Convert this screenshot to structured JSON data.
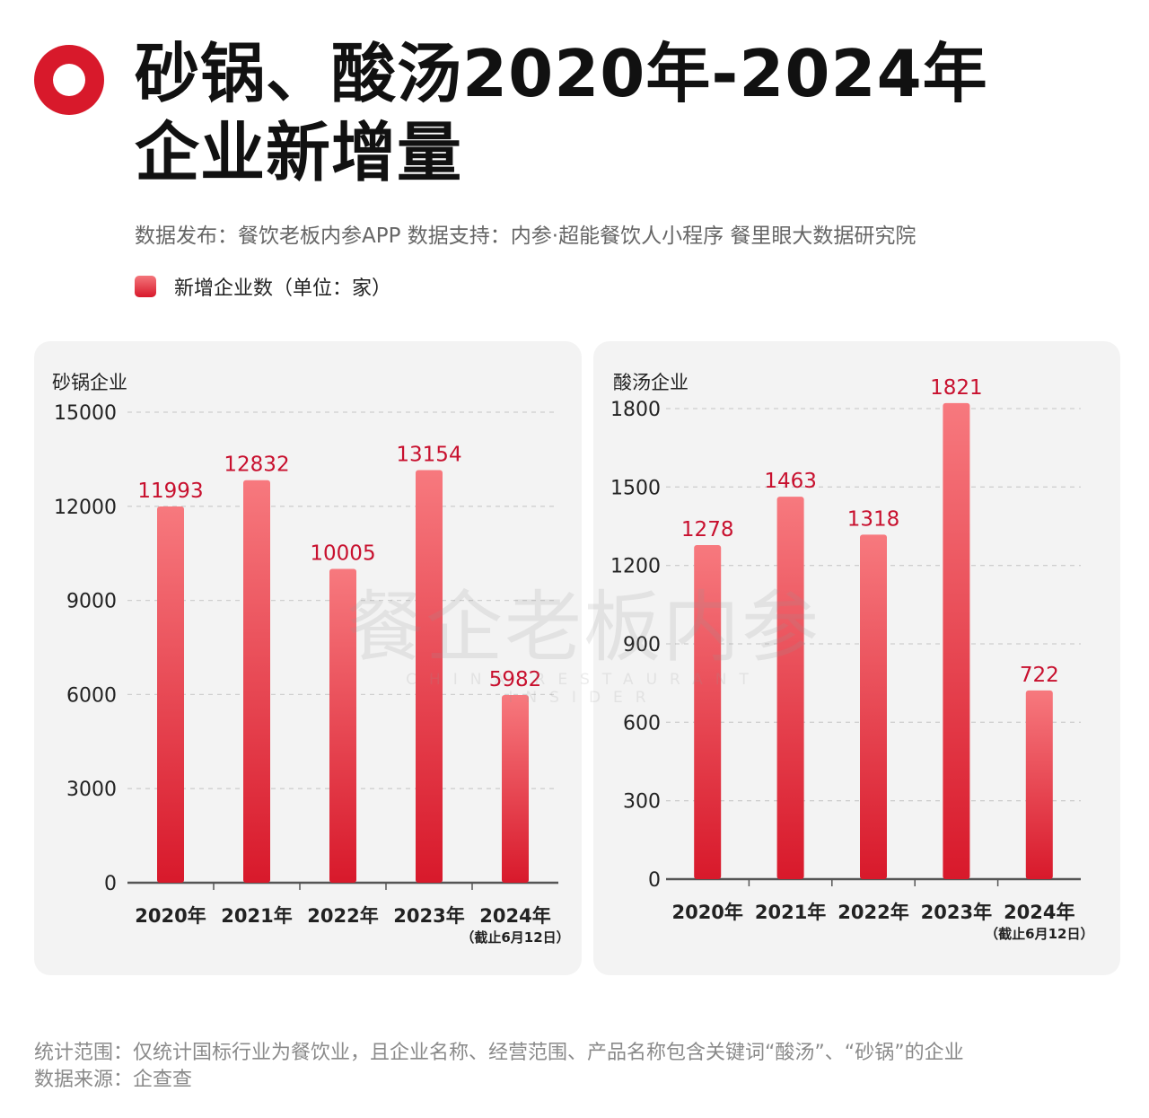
{
  "header": {
    "title_line1": "砂锅、酸汤2020年-2024年",
    "title_line2": "企业新增量",
    "source": "数据发布：餐饮老板内参APP 数据支持：内参·超能餐饮人小程序 餐里眼大数据研究院",
    "legend_label": "新增企业数（单位：家）",
    "accent_color": "#d8192b"
  },
  "watermark": {
    "cn": "餐企老板内参",
    "en": "CHINA RESTAURANT INSIDER"
  },
  "chart_data": [
    {
      "type": "bar",
      "title": "砂锅企业",
      "categories": [
        "2020年",
        "2021年",
        "2022年",
        "2023年",
        "2024年"
      ],
      "category_notes": [
        "",
        "",
        "",
        "",
        "（截止6月12日）"
      ],
      "values": [
        11993,
        12832,
        10005,
        13154,
        5982
      ],
      "yticks": [
        0,
        3000,
        6000,
        9000,
        12000,
        15000
      ],
      "ylim": [
        0,
        15000
      ],
      "grid": true,
      "bar_color": "#d8192b",
      "label_color": "#c8102e"
    },
    {
      "type": "bar",
      "title": "酸汤企业",
      "categories": [
        "2020年",
        "2021年",
        "2022年",
        "2023年",
        "2024年"
      ],
      "category_notes": [
        "",
        "",
        "",
        "",
        "（截止6月12日）"
      ],
      "values": [
        1278,
        1463,
        1318,
        1821,
        722
      ],
      "yticks": [
        0,
        300,
        600,
        900,
        1200,
        1500,
        1800
      ],
      "ylim": [
        0,
        1800
      ],
      "grid": true,
      "bar_color": "#d8192b",
      "label_color": "#c8102e"
    }
  ],
  "footnote": {
    "scope": "统计范围：仅统计国标行业为餐饮业，且企业名称、经营范围、产品名称包含关键词“酸汤”、“砂锅”的企业",
    "data_source": "数据来源：企查查"
  }
}
